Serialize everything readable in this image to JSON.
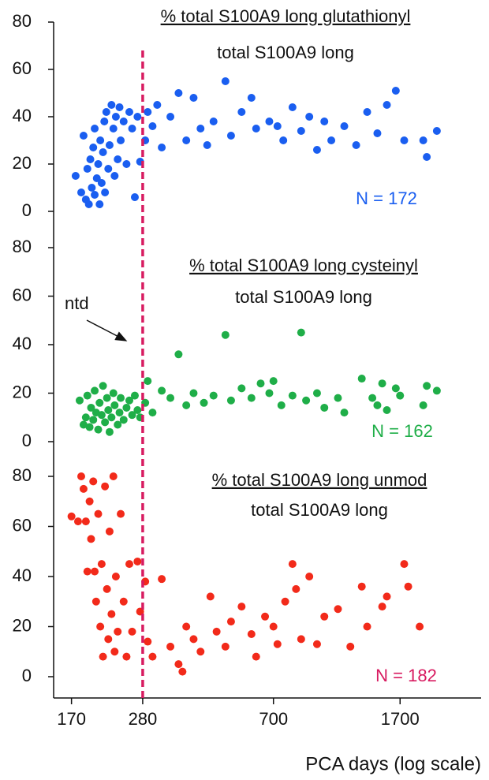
{
  "chart_data": [
    {
      "type": "scatter",
      "title": "% total S100A9  long  glutathionyl",
      "subtitle": "total S100A9  long",
      "annotation": "N = 172",
      "color": "#1a5ef0",
      "ylim": [
        0,
        80
      ],
      "yticks": [
        0,
        20,
        40,
        60,
        80
      ],
      "x": [
        175,
        182,
        185,
        188,
        190,
        192,
        194,
        196,
        198,
        200,
        200,
        203,
        205,
        207,
        208,
        210,
        212,
        214,
        215,
        217,
        220,
        222,
        225,
        228,
        230,
        232,
        235,
        238,
        240,
        245,
        250,
        255,
        260,
        265,
        270,
        275,
        285,
        290,
        300,
        310,
        320,
        340,
        360,
        380,
        400,
        420,
        440,
        460,
        500,
        520,
        560,
        600,
        620,
        680,
        720,
        750,
        800,
        850,
        900,
        950,
        1000,
        1050,
        1150,
        1250,
        1350,
        1450,
        1550,
        1650,
        1750,
        2000,
        2050,
        2200
      ],
      "values": [
        15,
        8,
        32,
        5,
        18,
        3,
        22,
        10,
        27,
        7,
        35,
        14,
        20,
        3,
        30,
        12,
        25,
        38,
        8,
        42,
        18,
        28,
        45,
        35,
        15,
        40,
        22,
        44,
        30,
        38,
        20,
        42,
        35,
        6,
        40,
        21,
        30,
        42,
        36,
        45,
        27,
        40,
        50,
        30,
        48,
        35,
        28,
        38,
        55,
        32,
        42,
        48,
        35,
        38,
        36,
        30,
        44,
        34,
        40,
        26,
        38,
        30,
        36,
        28,
        42,
        33,
        45,
        51,
        30,
        30,
        23,
        34
      ]
    },
    {
      "type": "scatter",
      "title": "% total S100A9  long  cysteinyl",
      "subtitle": "total S100A9  long",
      "annotation": "N = 162",
      "note": "ntd",
      "color": "#1fae48",
      "ylim": [
        0,
        80
      ],
      "yticks": [
        0,
        20,
        40,
        60,
        80
      ],
      "x": [
        180,
        185,
        188,
        190,
        193,
        195,
        198,
        200,
        202,
        205,
        207,
        210,
        212,
        215,
        218,
        220,
        222,
        225,
        228,
        230,
        235,
        238,
        240,
        245,
        250,
        255,
        260,
        265,
        270,
        275,
        285,
        290,
        300,
        320,
        340,
        360,
        380,
        400,
        430,
        460,
        500,
        520,
        560,
        600,
        640,
        680,
        700,
        740,
        800,
        850,
        880,
        950,
        1000,
        1100,
        1150,
        1300,
        1400,
        1450,
        1500,
        1550,
        1650,
        1700,
        2000,
        2050,
        2200
      ],
      "values": [
        17,
        7,
        10,
        19,
        6,
        14,
        9,
        21,
        12,
        5,
        16,
        11,
        23,
        8,
        18,
        13,
        4,
        10,
        20,
        15,
        7,
        12,
        18,
        9,
        14,
        17,
        11,
        19,
        13,
        10,
        16,
        25,
        12,
        21,
        18,
        36,
        15,
        20,
        16,
        19,
        44,
        17,
        22,
        18,
        24,
        20,
        25,
        15,
        19,
        45,
        17,
        20,
        14,
        18,
        12,
        26,
        18,
        15,
        24,
        13,
        22,
        19,
        15,
        23,
        21
      ]
    },
    {
      "type": "scatter",
      "title": "% total S100A9  long unmod",
      "subtitle": "total S100A9  long",
      "annotation": "N = 182",
      "color": "#f22a1a",
      "annotation_color": "#d81b60",
      "ylim": [
        0,
        80
      ],
      "yticks": [
        0,
        20,
        40,
        60,
        80
      ],
      "xlabel": "PCA days (log scale)",
      "xscale": "log",
      "xlim": [
        150,
        3000
      ],
      "xticks": [
        170,
        280,
        700,
        1700
      ],
      "vline": 280,
      "vline_color": "#d81b60",
      "x": [
        170,
        178,
        182,
        185,
        188,
        190,
        193,
        195,
        198,
        200,
        202,
        205,
        208,
        210,
        212,
        215,
        218,
        220,
        222,
        225,
        228,
        230,
        232,
        235,
        240,
        245,
        250,
        255,
        260,
        270,
        275,
        285,
        290,
        300,
        320,
        340,
        360,
        370,
        380,
        400,
        420,
        450,
        470,
        500,
        520,
        560,
        600,
        620,
        660,
        700,
        720,
        760,
        800,
        820,
        850,
        900,
        950,
        1000,
        1100,
        1200,
        1300,
        1350,
        1500,
        1550,
        1750,
        1800,
        1950
      ],
      "values": [
        64,
        62,
        80,
        75,
        62,
        42,
        70,
        55,
        78,
        42,
        30,
        65,
        20,
        45,
        8,
        76,
        35,
        15,
        58,
        25,
        80,
        10,
        40,
        18,
        65,
        30,
        8,
        45,
        18,
        46,
        26,
        38,
        14,
        8,
        39,
        12,
        5,
        2,
        20,
        15,
        10,
        32,
        18,
        12,
        22,
        28,
        17,
        8,
        24,
        20,
        13,
        30,
        45,
        35,
        15,
        40,
        13,
        24,
        27,
        12,
        36,
        20,
        28,
        32,
        45,
        36,
        20
      ]
    }
  ]
}
